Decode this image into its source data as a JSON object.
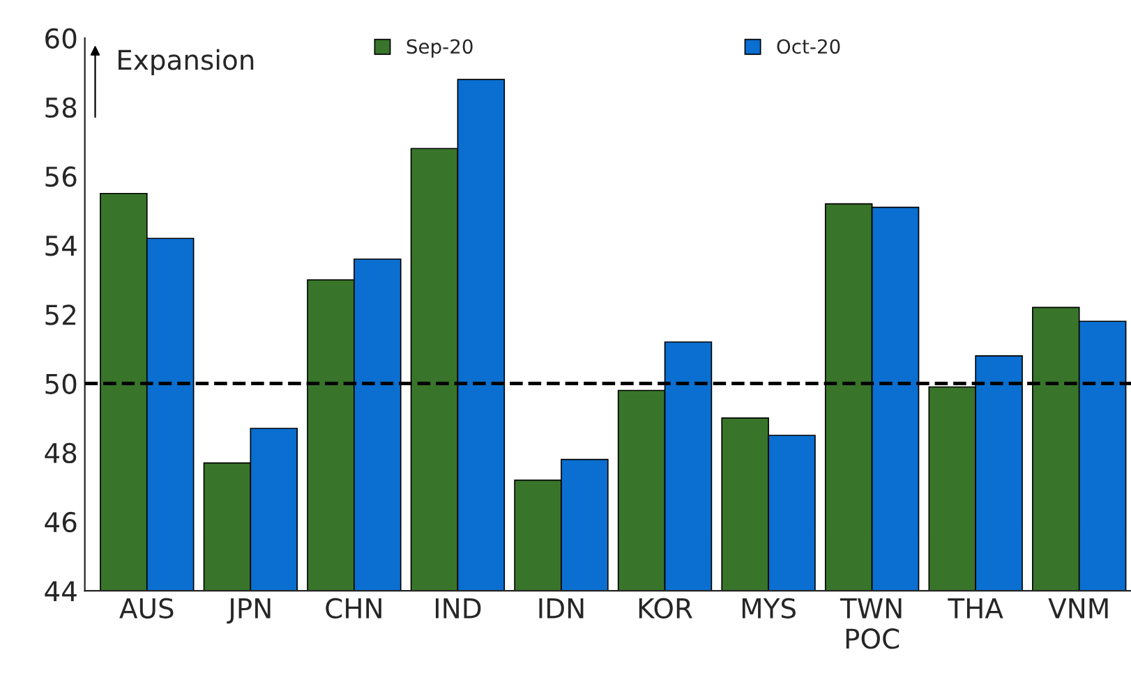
{
  "chart_data": {
    "type": "bar",
    "categories": [
      "AUS",
      "JPN",
      "CHN",
      "IND",
      "IDN",
      "KOR",
      "MYS",
      "TWN\nPOC",
      "THA",
      "VNM"
    ],
    "series": [
      {
        "name": "Sep-20",
        "color": "#38752a",
        "values": [
          55.5,
          47.7,
          53.0,
          56.8,
          47.2,
          49.8,
          49.0,
          55.2,
          49.9,
          52.2
        ]
      },
      {
        "name": "Oct-20",
        "color": "#0a6fd0",
        "values": [
          54.2,
          48.7,
          53.6,
          58.8,
          47.8,
          51.2,
          48.5,
          55.1,
          50.8,
          51.8
        ]
      }
    ],
    "ylim": [
      44,
      60
    ],
    "yticks": [
      44,
      46,
      48,
      50,
      52,
      54,
      56,
      58,
      60
    ],
    "ref_lines": [
      {
        "axis": "y",
        "value": 50,
        "label": null,
        "color": "#000000",
        "line_style": "dashed"
      }
    ],
    "annotations": [
      "Expansion"
    ],
    "legend": "top",
    "grid": false
  }
}
